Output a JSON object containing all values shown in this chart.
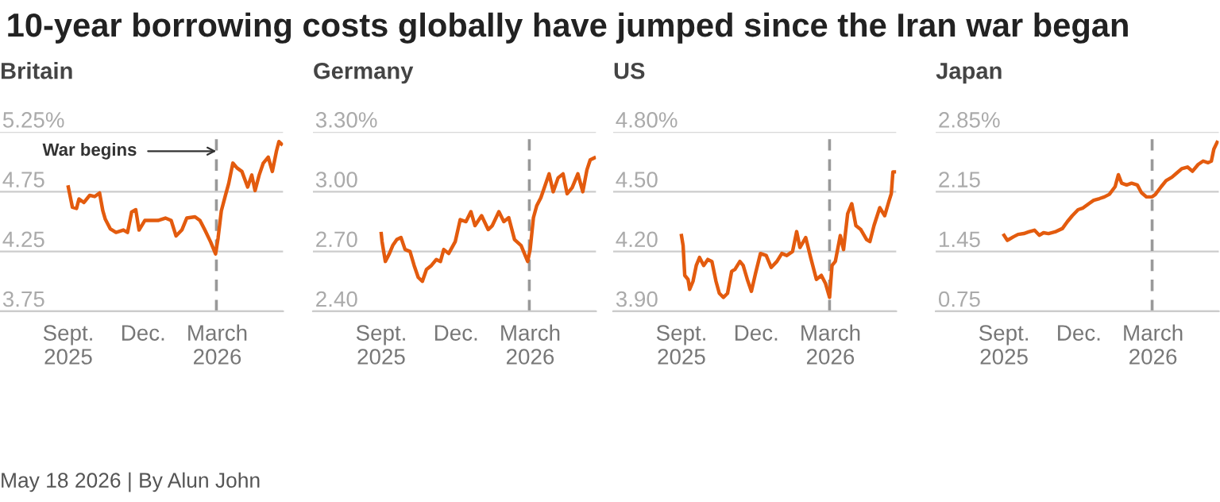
{
  "chart_data": [
    {
      "type": "line",
      "title": "Britain",
      "annotations": [
        "10-year borrowing costs globally have jumped since the Iran war began",
        "May 18 2026 | By Alun John",
        {
          "text": "War begins",
          "x": "2026-02-28",
          "y": 5.09
        }
      ],
      "xlim": [
        "2025-06-10",
        "2026-05-20"
      ],
      "xticks": [
        {
          "value": "2025-09-01",
          "label": "Sept.\n2025"
        },
        {
          "value": "2025-12-01",
          "label": "Dec."
        },
        {
          "value": "2026-03-01",
          "label": "March\n2026"
        }
      ],
      "ylim": [
        3.75,
        5.25
      ],
      "yticks": [
        3.75,
        4.25,
        4.75,
        {
          "value": 5.25,
          "label": "5.25%"
        }
      ],
      "grid": "y",
      "line_style": "solid",
      "ref_lines": [
        {
          "axis": "x",
          "value": "2026-02-28",
          "color": "#999999",
          "line_style": "dashed"
        }
      ],
      "series": [
        {
          "color": "#e35b0e",
          "x": [
            "2025-09-01",
            "2025-09-06",
            "2025-09-11",
            "2025-09-14",
            "2025-09-20",
            "2025-09-27",
            "2025-10-03",
            "2025-10-09",
            "2025-10-13",
            "2025-10-16",
            "2025-10-22",
            "2025-10-29",
            "2025-11-07",
            "2025-11-12",
            "2025-11-17",
            "2025-11-22",
            "2025-11-26",
            "2025-12-03",
            "2025-12-09",
            "2025-12-19",
            "2025-12-28",
            "2026-01-04",
            "2026-01-10",
            "2026-01-17",
            "2026-01-23",
            "2026-02-02",
            "2026-02-08",
            "2026-02-14",
            "2026-02-21",
            "2026-02-27",
            "2026-03-02",
            "2026-03-06",
            "2026-03-11",
            "2026-03-15",
            "2026-03-20",
            "2026-03-25",
            "2026-03-31",
            "2026-04-07",
            "2026-04-12",
            "2026-04-16",
            "2026-04-21",
            "2026-04-26",
            "2026-05-02",
            "2026-05-07",
            "2026-05-12",
            "2026-05-15",
            "2026-05-18"
          ],
          "values": [
            4.79,
            4.62,
            4.61,
            4.69,
            4.66,
            4.72,
            4.71,
            4.74,
            4.59,
            4.52,
            4.44,
            4.41,
            4.43,
            4.41,
            4.58,
            4.6,
            4.43,
            4.51,
            4.51,
            4.51,
            4.53,
            4.51,
            4.38,
            4.43,
            4.53,
            4.54,
            4.51,
            4.43,
            4.33,
            4.23,
            4.36,
            4.59,
            4.72,
            4.82,
            4.99,
            4.95,
            4.92,
            4.79,
            4.89,
            4.76,
            4.89,
            4.99,
            5.04,
            4.92,
            5.09,
            5.17,
            5.15
          ]
        }
      ]
    },
    {
      "type": "line",
      "title": "Germany",
      "xlim": [
        "2025-06-10",
        "2026-05-20"
      ],
      "xticks": [
        {
          "value": "2025-09-01",
          "label": "Sept.\n2025"
        },
        {
          "value": "2025-12-01",
          "label": "Dec."
        },
        {
          "value": "2026-03-01",
          "label": "March\n2026"
        }
      ],
      "ylim": [
        2.4,
        3.3
      ],
      "yticks": [
        {
          "value": 2.4,
          "label": "2.40"
        },
        {
          "value": 2.7,
          "label": "2.70"
        },
        {
          "value": 3.0,
          "label": "3.00"
        },
        {
          "value": 3.3,
          "label": "3.30%"
        }
      ],
      "grid": "y",
      "line_style": "solid",
      "ref_lines": [
        {
          "axis": "x",
          "value": "2026-02-28",
          "color": "#999999",
          "line_style": "dashed"
        }
      ],
      "series": [
        {
          "color": "#e35b0e",
          "x": [
            "2025-09-01",
            "2025-09-02",
            "2025-09-06",
            "2025-09-11",
            "2025-09-15",
            "2025-09-20",
            "2025-09-25",
            "2025-09-30",
            "2025-10-06",
            "2025-10-11",
            "2025-10-16",
            "2025-10-21",
            "2025-10-26",
            "2025-11-01",
            "2025-11-07",
            "2025-11-12",
            "2025-11-16",
            "2025-11-22",
            "2025-11-30",
            "2025-12-06",
            "2025-12-13",
            "2025-12-19",
            "2025-12-24",
            "2026-01-01",
            "2026-01-09",
            "2026-01-14",
            "2026-01-22",
            "2026-01-28",
            "2026-02-03",
            "2026-02-10",
            "2026-02-18",
            "2026-02-26",
            "2026-03-01",
            "2026-03-05",
            "2026-03-09",
            "2026-03-14",
            "2026-03-19",
            "2026-03-24",
            "2026-03-29",
            "2026-04-04",
            "2026-04-10",
            "2026-04-15",
            "2026-04-21",
            "2026-04-28",
            "2026-05-04",
            "2026-05-09",
            "2026-05-13",
            "2026-05-18"
          ],
          "values": [
            2.79,
            2.75,
            2.65,
            2.69,
            2.73,
            2.76,
            2.77,
            2.71,
            2.7,
            2.63,
            2.57,
            2.55,
            2.61,
            2.63,
            2.66,
            2.65,
            2.71,
            2.69,
            2.75,
            2.86,
            2.85,
            2.9,
            2.83,
            2.88,
            2.81,
            2.83,
            2.9,
            2.85,
            2.87,
            2.76,
            2.73,
            2.65,
            2.71,
            2.87,
            2.93,
            2.97,
            3.03,
            3.09,
            3.0,
            3.07,
            3.09,
            2.99,
            3.02,
            3.09,
            3.0,
            3.11,
            3.16,
            3.17
          ]
        }
      ]
    },
    {
      "type": "line",
      "title": "US",
      "xlim": [
        "2025-06-10",
        "2026-05-20"
      ],
      "xticks": [
        {
          "value": "2025-09-01",
          "label": "Sept.\n2025"
        },
        {
          "value": "2025-12-01",
          "label": "Dec."
        },
        {
          "value": "2026-03-01",
          "label": "March\n2026"
        }
      ],
      "ylim": [
        3.9,
        4.8
      ],
      "yticks": [
        {
          "value": 3.9,
          "label": "3.90"
        },
        {
          "value": 4.2,
          "label": "4.20"
        },
        {
          "value": 4.5,
          "label": "4.50"
        },
        {
          "value": 4.8,
          "label": "4.80%"
        }
      ],
      "grid": "y",
      "line_style": "solid",
      "ref_lines": [
        {
          "axis": "x",
          "value": "2026-02-28",
          "color": "#999999",
          "line_style": "dashed"
        }
      ],
      "series": [
        {
          "color": "#e35b0e",
          "x": [
            "2025-09-01",
            "2025-09-03",
            "2025-09-05",
            "2025-09-09",
            "2025-09-11",
            "2025-09-15",
            "2025-09-19",
            "2025-09-23",
            "2025-09-28",
            "2025-10-03",
            "2025-10-08",
            "2025-10-13",
            "2025-10-17",
            "2025-10-22",
            "2025-10-27",
            "2025-11-01",
            "2025-11-05",
            "2025-11-11",
            "2025-11-15",
            "2025-11-20",
            "2025-11-25",
            "2025-11-30",
            "2025-12-06",
            "2025-12-13",
            "2025-12-19",
            "2025-12-26",
            "2026-01-01",
            "2026-01-07",
            "2026-01-14",
            "2026-01-19",
            "2026-01-23",
            "2026-01-30",
            "2026-02-05",
            "2026-02-12",
            "2026-02-18",
            "2026-02-23",
            "2026-02-28",
            "2026-03-03",
            "2026-03-07",
            "2026-03-13",
            "2026-03-17",
            "2026-03-22",
            "2026-03-27",
            "2026-04-01",
            "2026-04-07",
            "2026-04-14",
            "2026-04-18",
            "2026-04-23",
            "2026-04-30",
            "2026-05-06",
            "2026-05-11",
            "2026-05-14",
            "2026-05-16",
            "2026-05-18"
          ],
          "values": [
            4.28,
            4.23,
            4.08,
            4.06,
            4.01,
            4.05,
            4.13,
            4.17,
            4.13,
            4.16,
            4.15,
            4.05,
            3.99,
            3.97,
            3.99,
            4.1,
            4.11,
            4.15,
            4.13,
            4.06,
            4.0,
            4.09,
            4.19,
            4.18,
            4.12,
            4.15,
            4.19,
            4.18,
            4.2,
            4.3,
            4.22,
            4.27,
            4.17,
            4.06,
            4.08,
            4.04,
            3.97,
            4.13,
            4.15,
            4.28,
            4.21,
            4.39,
            4.44,
            4.33,
            4.31,
            4.26,
            4.25,
            4.33,
            4.42,
            4.38,
            4.45,
            4.49,
            4.6,
            4.6
          ]
        }
      ]
    },
    {
      "type": "line",
      "title": "Japan",
      "xlim": [
        "2025-06-10",
        "2026-05-20"
      ],
      "xticks": [
        {
          "value": "2025-09-01",
          "label": "Sept.\n2025"
        },
        {
          "value": "2025-12-01",
          "label": "Dec."
        },
        {
          "value": "2026-03-01",
          "label": "March\n2026"
        }
      ],
      "ylim": [
        0.75,
        2.85
      ],
      "yticks": [
        0.75,
        1.45,
        2.15,
        {
          "value": 2.85,
          "label": "2.85%"
        }
      ],
      "grid": "y",
      "line_style": "solid",
      "ref_lines": [
        {
          "axis": "x",
          "value": "2026-02-28",
          "color": "#999999",
          "line_style": "dashed"
        }
      ],
      "series": [
        {
          "color": "#e35b0e",
          "x": [
            "2025-09-01",
            "2025-09-05",
            "2025-09-12",
            "2025-09-18",
            "2025-09-25",
            "2025-10-01",
            "2025-10-08",
            "2025-10-14",
            "2025-10-19",
            "2025-10-25",
            "2025-11-02",
            "2025-11-11",
            "2025-11-17",
            "2025-11-23",
            "2025-11-30",
            "2025-12-06",
            "2025-12-13",
            "2025-12-19",
            "2025-12-26",
            "2026-01-01",
            "2026-01-07",
            "2026-01-14",
            "2026-01-18",
            "2026-01-22",
            "2026-01-28",
            "2026-02-03",
            "2026-02-10",
            "2026-02-15",
            "2026-02-21",
            "2026-02-28",
            "2026-03-04",
            "2026-03-11",
            "2026-03-17",
            "2026-03-24",
            "2026-03-30",
            "2026-04-05",
            "2026-04-12",
            "2026-04-18",
            "2026-04-25",
            "2026-05-01",
            "2026-05-07",
            "2026-05-11",
            "2026-05-14",
            "2026-05-18"
          ],
          "values": [
            1.64,
            1.58,
            1.62,
            1.65,
            1.66,
            1.68,
            1.7,
            1.64,
            1.67,
            1.66,
            1.68,
            1.72,
            1.8,
            1.87,
            1.94,
            1.96,
            2.01,
            2.05,
            2.07,
            2.09,
            2.12,
            2.21,
            2.35,
            2.25,
            2.23,
            2.25,
            2.23,
            2.14,
            2.09,
            2.09,
            2.12,
            2.21,
            2.28,
            2.32,
            2.37,
            2.42,
            2.44,
            2.39,
            2.47,
            2.51,
            2.49,
            2.51,
            2.65,
            2.73
          ]
        }
      ]
    }
  ]
}
